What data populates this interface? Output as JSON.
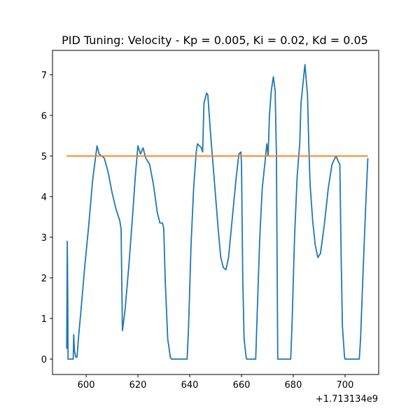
{
  "chart_data": {
    "type": "line",
    "title": "PID Tuning: Velocity - Kp = 0.005, Ki = 0.02, Kd = 0.05",
    "xlabel": "",
    "ylabel": "",
    "x_offset_label": "+1.713134e9",
    "xlim": [
      587,
      713
    ],
    "ylim": [
      -0.38,
      7.6
    ],
    "x_ticks": [
      600,
      620,
      640,
      660,
      680,
      700
    ],
    "y_ticks": [
      0,
      1,
      2,
      3,
      4,
      5,
      6,
      7
    ],
    "x_tick_labels": [
      "600",
      "620",
      "640",
      "660",
      "680",
      "700"
    ],
    "y_tick_labels": [
      "0",
      "1",
      "2",
      "3",
      "4",
      "5",
      "6",
      "7"
    ],
    "grid": false,
    "series": [
      {
        "color": "#1f77b4",
        "points": [
          [
            592.5,
            0.25
          ],
          [
            592.7,
            2.9
          ],
          [
            592.9,
            1.5
          ],
          [
            593.0,
            0.0
          ],
          [
            595.0,
            0.0
          ],
          [
            595.2,
            0.6
          ],
          [
            595.5,
            0.2
          ],
          [
            596.0,
            0.05
          ],
          [
            596.5,
            0.05
          ],
          [
            597.0,
            0.5
          ],
          [
            598.0,
            1.2
          ],
          [
            599.5,
            2.3
          ],
          [
            601.0,
            3.3
          ],
          [
            602.5,
            4.4
          ],
          [
            603.5,
            4.9
          ],
          [
            604.2,
            5.25
          ],
          [
            605.0,
            5.05
          ],
          [
            607.0,
            4.95
          ],
          [
            608.5,
            4.6
          ],
          [
            610.0,
            4.1
          ],
          [
            611.5,
            3.7
          ],
          [
            613.0,
            3.4
          ],
          [
            613.5,
            3.2
          ],
          [
            614.0,
            0.7
          ],
          [
            615.0,
            1.2
          ],
          [
            616.5,
            2.3
          ],
          [
            618.0,
            3.6
          ],
          [
            619.0,
            4.5
          ],
          [
            620.0,
            5.25
          ],
          [
            621.0,
            5.05
          ],
          [
            622.0,
            5.2
          ],
          [
            623.0,
            4.95
          ],
          [
            624.5,
            4.8
          ],
          [
            626.0,
            4.3
          ],
          [
            627.5,
            3.6
          ],
          [
            628.5,
            3.35
          ],
          [
            629.5,
            3.35
          ],
          [
            630.0,
            3.2
          ],
          [
            630.5,
            2.0
          ],
          [
            631.5,
            0.5
          ],
          [
            632.5,
            0.05
          ],
          [
            633.0,
            0.0
          ],
          [
            639.0,
            0.0
          ],
          [
            639.5,
            0.7
          ],
          [
            640.5,
            2.8
          ],
          [
            641.5,
            4.2
          ],
          [
            642.5,
            5.1
          ],
          [
            643.0,
            5.3
          ],
          [
            644.5,
            5.2
          ],
          [
            645.0,
            5.1
          ],
          [
            645.5,
            6.3
          ],
          [
            646.5,
            6.55
          ],
          [
            647.0,
            6.5
          ],
          [
            648.0,
            5.6
          ],
          [
            649.0,
            4.8
          ],
          [
            650.0,
            4.0
          ],
          [
            651.0,
            3.2
          ],
          [
            652.0,
            2.5
          ],
          [
            653.0,
            2.25
          ],
          [
            654.0,
            2.2
          ],
          [
            655.0,
            2.5
          ],
          [
            656.5,
            3.5
          ],
          [
            658.0,
            4.5
          ],
          [
            659.0,
            5.05
          ],
          [
            659.8,
            5.1
          ],
          [
            660.0,
            4.8
          ],
          [
            660.5,
            2.0
          ],
          [
            661.0,
            0.5
          ],
          [
            661.8,
            0.05
          ],
          [
            662.0,
            0.0
          ],
          [
            665.5,
            0.0
          ],
          [
            666.0,
            1.0
          ],
          [
            667.0,
            2.9
          ],
          [
            668.0,
            4.2
          ],
          [
            669.0,
            4.8
          ],
          [
            669.8,
            5.3
          ],
          [
            670.3,
            5.0
          ],
          [
            670.8,
            6.0
          ],
          [
            671.5,
            6.6
          ],
          [
            672.3,
            6.95
          ],
          [
            673.0,
            6.6
          ],
          [
            673.5,
            5.0
          ],
          [
            674.0,
            0.0
          ],
          [
            679.0,
            0.0
          ],
          [
            679.5,
            0.8
          ],
          [
            680.5,
            3.0
          ],
          [
            681.5,
            4.5
          ],
          [
            682.5,
            5.3
          ],
          [
            683.0,
            6.3
          ],
          [
            684.5,
            7.25
          ],
          [
            685.5,
            6.5
          ],
          [
            686.0,
            5.3
          ],
          [
            686.5,
            4.3
          ],
          [
            687.5,
            3.4
          ],
          [
            688.5,
            2.8
          ],
          [
            689.5,
            2.5
          ],
          [
            690.5,
            2.6
          ],
          [
            692.0,
            3.3
          ],
          [
            693.5,
            4.2
          ],
          [
            695.0,
            4.8
          ],
          [
            696.5,
            5.0
          ],
          [
            697.5,
            4.85
          ],
          [
            698.0,
            4.8
          ],
          [
            698.5,
            2.5
          ],
          [
            699.0,
            0.8
          ],
          [
            699.8,
            0.05
          ],
          [
            700.0,
            0.0
          ],
          [
            705.5,
            0.0
          ],
          [
            706.0,
            0.5
          ],
          [
            707.0,
            2.2
          ],
          [
            708.0,
            3.8
          ],
          [
            708.8,
            4.95
          ]
        ]
      },
      {
        "color": "#ff7f0e",
        "points": [
          [
            592.5,
            5.0
          ],
          [
            708.8,
            5.0
          ]
        ]
      }
    ]
  }
}
